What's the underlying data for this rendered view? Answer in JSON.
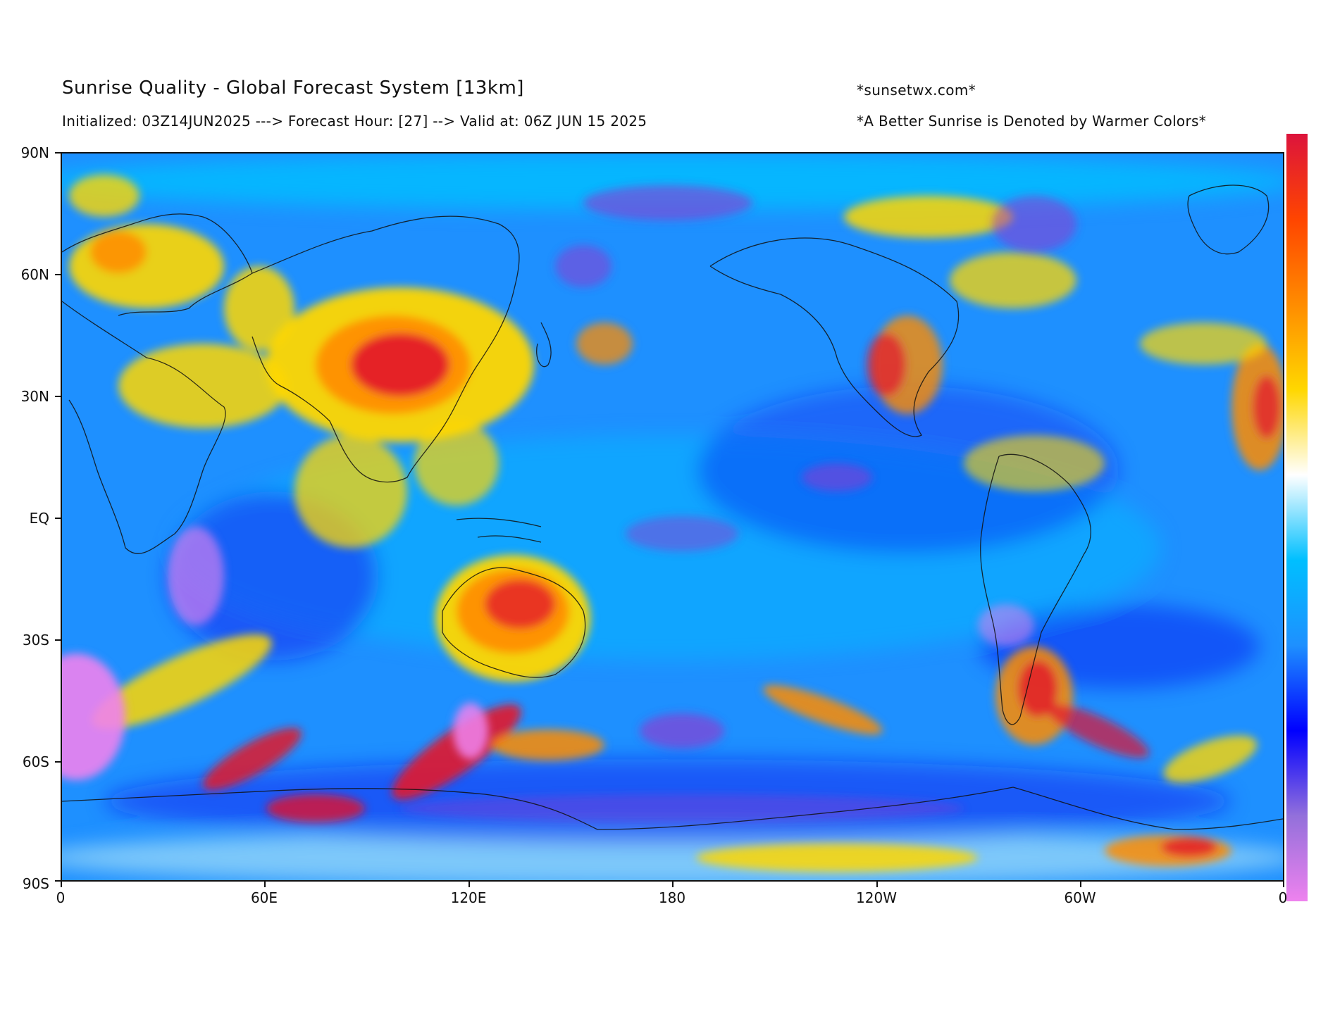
{
  "header": {
    "title": "Sunrise Quality - Global Forecast System [13km]",
    "subtitle": "Initialized: 03Z14JUN2025 ---> Forecast Hour: [27] --> Valid at: 06Z JUN 15 2025",
    "site": "*sunsetwx.com*",
    "note": "*A Better Sunrise is Denoted by Warmer Colors*"
  },
  "axes": {
    "lat_ticks": [
      "90N",
      "60N",
      "30N",
      "EQ",
      "30S",
      "60S",
      "90S"
    ],
    "lon_ticks": [
      "0",
      "60E",
      "120E",
      "180",
      "120W",
      "60W",
      "0"
    ]
  },
  "map": {
    "projection": "equirectangular",
    "lon_range": [
      0,
      360
    ],
    "lat_range": [
      -90,
      90
    ],
    "base_color": "#1e90ff",
    "palette": {
      "violet": "#ee82ee",
      "purple": "#9932cc",
      "deep_blue": "#1010ee",
      "blue": "#1e90ff",
      "sky": "#00bfff",
      "white": "#ffffff",
      "yellow": "#ffd700",
      "orange": "#ff8c00",
      "red": "#e2142c"
    }
  },
  "colorbar": {
    "orientation": "vertical",
    "stops": [
      "#ee82ee",
      "#9370db",
      "#0000ff",
      "#1e90ff",
      "#00bfff",
      "#ffffff",
      "#ffd700",
      "#ff8c00",
      "#ff4500",
      "#dc143c"
    ]
  }
}
